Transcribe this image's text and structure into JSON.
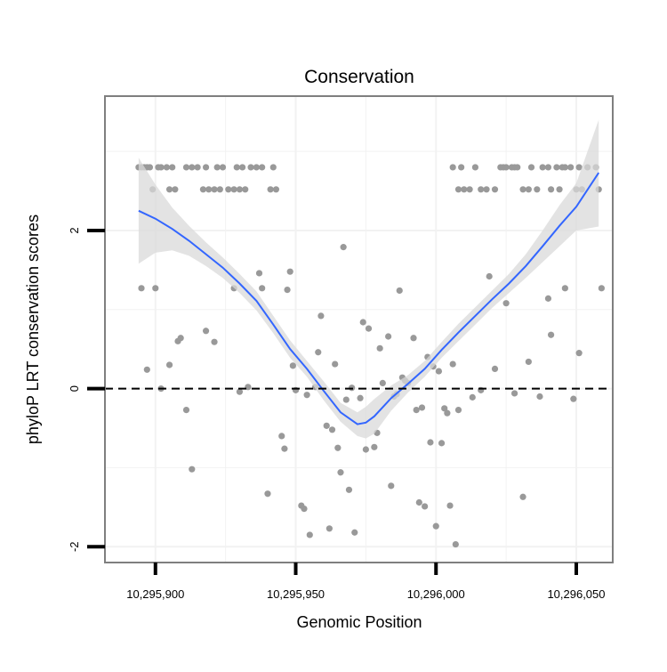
{
  "chart_data": {
    "type": "scatter",
    "title": "Conservation",
    "xlabel": "Genomic Position",
    "ylabel": "phyloP LRT conservation scores",
    "xlim": [
      10295882,
      10296063
    ],
    "ylim": [
      -2.2,
      3.7
    ],
    "x_ticks": [
      10295900,
      10295950,
      10296000,
      10296050
    ],
    "x_tick_labels": [
      "10,295,900",
      "10,295,950",
      "10,296,000",
      "10,296,050"
    ],
    "y_ticks": [
      -2,
      0,
      2
    ],
    "y_tick_labels": [
      "-2",
      "0",
      "2"
    ],
    "grid": true,
    "reference_line": {
      "y": 0,
      "style": "dashed"
    },
    "colors": {
      "points": "#999999",
      "smooth_line": "#3366FF",
      "ribbon": "#D9D9D9",
      "panel_border": "#7F7F7F",
      "grid": "#F2F2F2"
    },
    "points": [
      {
        "x": 10295894,
        "y": 2.8
      },
      {
        "x": 10295895,
        "y": 2.8
      },
      {
        "x": 10295896,
        "y": 2.8
      },
      {
        "x": 10295897,
        "y": 2.8
      },
      {
        "x": 10295898,
        "y": 2.8
      },
      {
        "x": 10295899,
        "y": 2.52
      },
      {
        "x": 10295901,
        "y": 2.8
      },
      {
        "x": 10295902,
        "y": 2.8
      },
      {
        "x": 10295904,
        "y": 2.8
      },
      {
        "x": 10295905,
        "y": 2.52
      },
      {
        "x": 10295906,
        "y": 2.8
      },
      {
        "x": 10295907,
        "y": 2.52
      },
      {
        "x": 10295911,
        "y": 2.8
      },
      {
        "x": 10295913,
        "y": 2.8
      },
      {
        "x": 10295915,
        "y": 2.8
      },
      {
        "x": 10295917,
        "y": 2.52
      },
      {
        "x": 10295918,
        "y": 2.8
      },
      {
        "x": 10295919,
        "y": 2.52
      },
      {
        "x": 10295921,
        "y": 2.52
      },
      {
        "x": 10295922,
        "y": 2.8
      },
      {
        "x": 10295923,
        "y": 2.52
      },
      {
        "x": 10295924,
        "y": 2.8
      },
      {
        "x": 10295926,
        "y": 2.52
      },
      {
        "x": 10295928,
        "y": 2.52
      },
      {
        "x": 10295929,
        "y": 2.8
      },
      {
        "x": 10295930,
        "y": 2.52
      },
      {
        "x": 10295931,
        "y": 2.8
      },
      {
        "x": 10295932,
        "y": 2.52
      },
      {
        "x": 10295934,
        "y": 2.8
      },
      {
        "x": 10295936,
        "y": 2.8
      },
      {
        "x": 10295938,
        "y": 2.8
      },
      {
        "x": 10295941,
        "y": 2.52
      },
      {
        "x": 10295942,
        "y": 2.8
      },
      {
        "x": 10295943,
        "y": 2.52
      },
      {
        "x": 10296006,
        "y": 2.8
      },
      {
        "x": 10296008,
        "y": 2.52
      },
      {
        "x": 10296009,
        "y": 2.8
      },
      {
        "x": 10296010,
        "y": 2.52
      },
      {
        "x": 10296012,
        "y": 2.52
      },
      {
        "x": 10296014,
        "y": 2.8
      },
      {
        "x": 10296016,
        "y": 2.52
      },
      {
        "x": 10296018,
        "y": 2.52
      },
      {
        "x": 10296021,
        "y": 2.52
      },
      {
        "x": 10296023,
        "y": 2.8
      },
      {
        "x": 10296024,
        "y": 2.8
      },
      {
        "x": 10296025,
        "y": 2.8
      },
      {
        "x": 10296027,
        "y": 2.8
      },
      {
        "x": 10296028,
        "y": 2.8
      },
      {
        "x": 10296029,
        "y": 2.8
      },
      {
        "x": 10296031,
        "y": 2.52
      },
      {
        "x": 10296033,
        "y": 2.52
      },
      {
        "x": 10296034,
        "y": 2.8
      },
      {
        "x": 10296036,
        "y": 2.52
      },
      {
        "x": 10296038,
        "y": 2.8
      },
      {
        "x": 10296040,
        "y": 2.8
      },
      {
        "x": 10296041,
        "y": 2.52
      },
      {
        "x": 10296043,
        "y": 2.8
      },
      {
        "x": 10296044,
        "y": 2.52
      },
      {
        "x": 10296045,
        "y": 2.8
      },
      {
        "x": 10296046,
        "y": 2.8
      },
      {
        "x": 10296048,
        "y": 2.8
      },
      {
        "x": 10296050,
        "y": 2.52
      },
      {
        "x": 10296051,
        "y": 2.8
      },
      {
        "x": 10296052,
        "y": 2.52
      },
      {
        "x": 10296054,
        "y": 2.8
      },
      {
        "x": 10296057,
        "y": 2.8
      },
      {
        "x": 10296058,
        "y": 2.52
      },
      {
        "x": 10295895,
        "y": 1.27
      },
      {
        "x": 10295897,
        "y": 0.24
      },
      {
        "x": 10295900,
        "y": 1.27
      },
      {
        "x": 10295902,
        "y": 0.0
      },
      {
        "x": 10295905,
        "y": 0.3
      },
      {
        "x": 10295908,
        "y": 0.6
      },
      {
        "x": 10295909,
        "y": 0.64
      },
      {
        "x": 10295911,
        "y": -0.27
      },
      {
        "x": 10295913,
        "y": -1.02
      },
      {
        "x": 10295918,
        "y": 0.73
      },
      {
        "x": 10295921,
        "y": 0.59
      },
      {
        "x": 10295928,
        "y": 1.27
      },
      {
        "x": 10295930,
        "y": -0.04
      },
      {
        "x": 10295933,
        "y": 0.02
      },
      {
        "x": 10295937,
        "y": 1.46
      },
      {
        "x": 10295938,
        "y": 1.27
      },
      {
        "x": 10295940,
        "y": -1.33
      },
      {
        "x": 10295945,
        "y": -0.6
      },
      {
        "x": 10295946,
        "y": -0.76
      },
      {
        "x": 10295947,
        "y": 1.25
      },
      {
        "x": 10295948,
        "y": 1.48
      },
      {
        "x": 10295949,
        "y": 0.29
      },
      {
        "x": 10295950,
        "y": -0.02
      },
      {
        "x": 10295952,
        "y": -1.48
      },
      {
        "x": 10295953,
        "y": -1.52
      },
      {
        "x": 10295954,
        "y": -0.08
      },
      {
        "x": 10295955,
        "y": -1.85
      },
      {
        "x": 10295957,
        "y": 0.02
      },
      {
        "x": 10295958,
        "y": 0.46
      },
      {
        "x": 10295959,
        "y": 0.92
      },
      {
        "x": 10295961,
        "y": -0.47
      },
      {
        "x": 10295962,
        "y": -1.77
      },
      {
        "x": 10295963,
        "y": -0.52
      },
      {
        "x": 10295964,
        "y": 0.31
      },
      {
        "x": 10295965,
        "y": -0.75
      },
      {
        "x": 10295966,
        "y": -1.06
      },
      {
        "x": 10295967,
        "y": 1.79
      },
      {
        "x": 10295968,
        "y": -0.14
      },
      {
        "x": 10295969,
        "y": -1.28
      },
      {
        "x": 10295970,
        "y": 0.01
      },
      {
        "x": 10295971,
        "y": -1.82
      },
      {
        "x": 10295973,
        "y": -0.12
      },
      {
        "x": 10295974,
        "y": 0.84
      },
      {
        "x": 10295975,
        "y": -0.77
      },
      {
        "x": 10295976,
        "y": 0.76
      },
      {
        "x": 10295978,
        "y": -0.74
      },
      {
        "x": 10295979,
        "y": -0.56
      },
      {
        "x": 10295980,
        "y": 0.51
      },
      {
        "x": 10295981,
        "y": 0.07
      },
      {
        "x": 10295983,
        "y": 0.66
      },
      {
        "x": 10295984,
        "y": -1.23
      },
      {
        "x": 10295985,
        "y": -0.1
      },
      {
        "x": 10295986,
        "y": -0.07
      },
      {
        "x": 10295987,
        "y": 1.24
      },
      {
        "x": 10295988,
        "y": 0.14
      },
      {
        "x": 10295989,
        "y": 0.1
      },
      {
        "x": 10295990,
        "y": 0.07
      },
      {
        "x": 10295992,
        "y": 0.64
      },
      {
        "x": 10295993,
        "y": -0.27
      },
      {
        "x": 10295994,
        "y": -1.44
      },
      {
        "x": 10295995,
        "y": -0.24
      },
      {
        "x": 10295996,
        "y": -1.49
      },
      {
        "x": 10295997,
        "y": 0.4
      },
      {
        "x": 10295998,
        "y": -0.68
      },
      {
        "x": 10295999,
        "y": 0.28
      },
      {
        "x": 10296000,
        "y": -1.74
      },
      {
        "x": 10296001,
        "y": 0.22
      },
      {
        "x": 10296002,
        "y": -0.69
      },
      {
        "x": 10296003,
        "y": -0.25
      },
      {
        "x": 10296004,
        "y": -0.31
      },
      {
        "x": 10296005,
        "y": -1.48
      },
      {
        "x": 10296006,
        "y": 0.31
      },
      {
        "x": 10296007,
        "y": -1.97
      },
      {
        "x": 10296008,
        "y": -0.27
      },
      {
        "x": 10296013,
        "y": -0.11
      },
      {
        "x": 10296016,
        "y": -0.02
      },
      {
        "x": 10296019,
        "y": 1.42
      },
      {
        "x": 10296021,
        "y": 0.25
      },
      {
        "x": 10296025,
        "y": 1.08
      },
      {
        "x": 10296028,
        "y": -0.06
      },
      {
        "x": 10296031,
        "y": -1.37
      },
      {
        "x": 10296033,
        "y": 0.34
      },
      {
        "x": 10296037,
        "y": -0.1
      },
      {
        "x": 10296040,
        "y": 1.14
      },
      {
        "x": 10296041,
        "y": 0.68
      },
      {
        "x": 10296046,
        "y": 1.27
      },
      {
        "x": 10296049,
        "y": -0.13
      },
      {
        "x": 10296051,
        "y": 0.45
      },
      {
        "x": 10296059,
        "y": 1.27
      }
    ],
    "smooth": {
      "x": [
        10295894,
        10295900,
        10295906,
        10295912,
        10295918,
        10295924,
        10295930,
        10295936,
        10295942,
        10295948,
        10295954,
        10295960,
        10295966,
        10295972,
        10295975,
        10295978,
        10295984,
        10295990,
        10295996,
        10296002,
        10296008,
        10296014,
        10296020,
        10296026,
        10296032,
        10296038,
        10296044,
        10296050,
        10296058
      ],
      "y": [
        2.25,
        2.15,
        2.02,
        1.87,
        1.7,
        1.53,
        1.33,
        1.11,
        0.81,
        0.5,
        0.25,
        -0.03,
        -0.3,
        -0.45,
        -0.43,
        -0.35,
        -0.12,
        0.06,
        0.25,
        0.49,
        0.71,
        0.92,
        1.13,
        1.33,
        1.55,
        1.8,
        2.06,
        2.3,
        2.73
      ],
      "ymin": [
        1.58,
        1.72,
        1.75,
        1.68,
        1.55,
        1.4,
        1.21,
        0.99,
        0.7,
        0.39,
        0.15,
        -0.15,
        -0.42,
        -0.6,
        -0.63,
        -0.57,
        -0.28,
        -0.05,
        0.15,
        0.39,
        0.6,
        0.81,
        1.02,
        1.21,
        1.4,
        1.6,
        1.8,
        2.0,
        2.05
      ],
      "ymax": [
        2.92,
        2.58,
        2.29,
        2.06,
        1.85,
        1.66,
        1.45,
        1.23,
        0.92,
        0.61,
        0.35,
        0.09,
        -0.18,
        -0.3,
        -0.23,
        -0.13,
        0.04,
        0.17,
        0.35,
        0.59,
        0.82,
        1.03,
        1.24,
        1.45,
        1.7,
        2.0,
        2.32,
        2.6,
        3.4
      ]
    }
  }
}
